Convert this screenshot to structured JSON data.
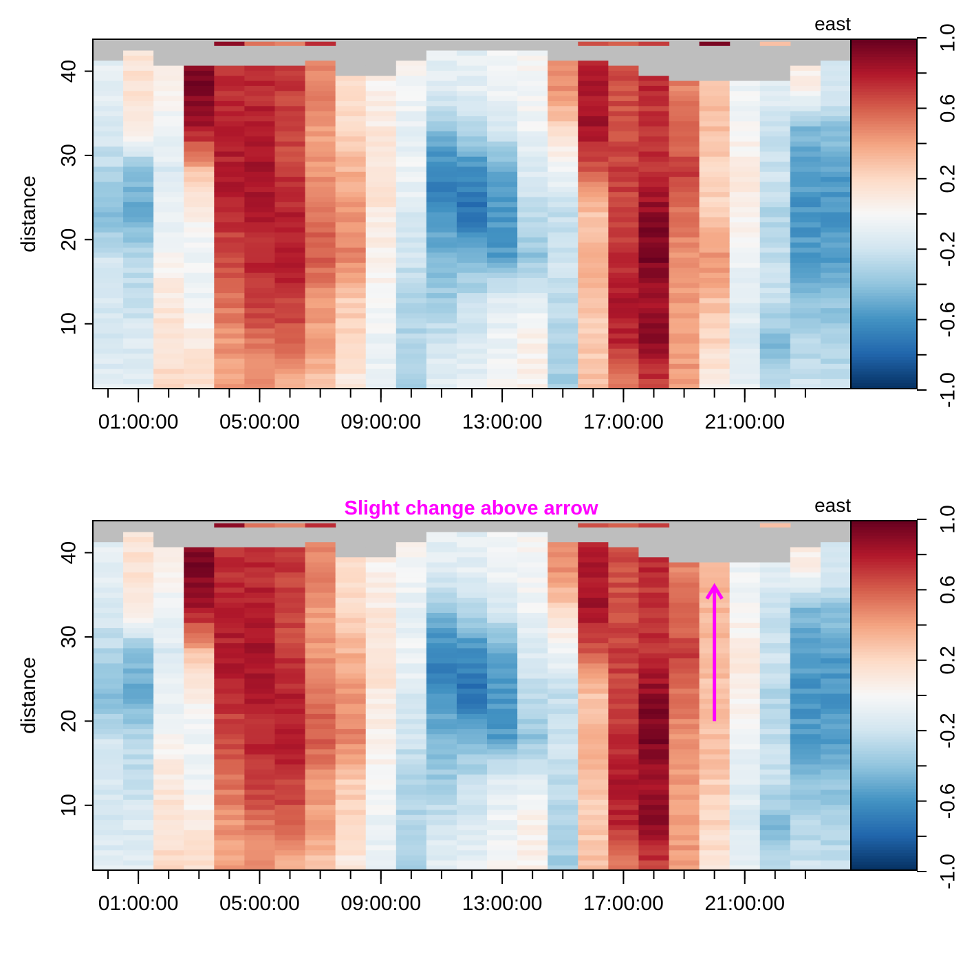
{
  "chart_data": [
    {
      "type": "heatmap",
      "title": "",
      "ylabel": "distance",
      "xlabel": "",
      "colorbar_title": "east",
      "x_tick_labels": [
        "01:00:00",
        "05:00:00",
        "09:00:00",
        "13:00:00",
        "17:00:00",
        "21:00:00"
      ],
      "x_tick_hours": [
        1,
        5,
        9,
        13,
        17,
        21
      ],
      "xlim_hours": [
        -0.5,
        24.5
      ],
      "x_minor_tick_hours": [
        0,
        1,
        2,
        3,
        4,
        5,
        6,
        7,
        8,
        9,
        10,
        11,
        12,
        13,
        14,
        15,
        16,
        17,
        18,
        19,
        20,
        21,
        22,
        23
      ],
      "y_ticks": [
        10,
        20,
        30,
        40
      ],
      "ylim": [
        2.3,
        43.8
      ],
      "zlim": [
        -1.0,
        1.0
      ],
      "colorbar_ticks": [
        "-1.0",
        "-0.6",
        "-0.2",
        "0.2",
        "0.6",
        "1.0"
      ],
      "colorbar_tick_values": [
        -1.0,
        -0.6,
        -0.2,
        0.2,
        0.6,
        1.0
      ],
      "colorbar_minor_values": [
        -1.0,
        -0.8,
        -0.6,
        -0.4,
        -0.2,
        0.0,
        0.2,
        0.4,
        0.6,
        0.8,
        1.0
      ],
      "palette": [
        "#053061",
        "#2166ac",
        "#4393c3",
        "#92c5de",
        "#d1e5f0",
        "#f7f7f7",
        "#fddbc7",
        "#f4a582",
        "#d6604d",
        "#b2182b",
        "#67001f"
      ],
      "missing_color": "#bebebe",
      "time_hours": [
        0,
        1,
        2,
        3,
        4,
        5,
        6,
        7,
        8,
        9,
        10,
        11,
        12,
        13,
        14,
        15,
        16,
        17,
        18,
        19,
        20,
        21,
        22,
        23,
        24
      ],
      "anchor_distances": [
        3,
        8,
        13,
        18,
        23,
        28,
        33,
        38
      ],
      "east_profiles": [
        [
          -0.12,
          -0.15,
          -0.18,
          -0.2,
          -0.45,
          -0.3,
          -0.15,
          -0.1
        ],
        [
          -0.1,
          -0.15,
          -0.22,
          -0.3,
          -0.5,
          -0.45,
          0.1,
          0.15
        ],
        [
          0.2,
          0.15,
          0.1,
          0.0,
          -0.08,
          -0.15,
          -0.05,
          0.05
        ],
        [
          0.15,
          0.1,
          -0.05,
          -0.05,
          0.05,
          0.3,
          0.8,
          0.95
        ],
        [
          0.4,
          0.45,
          0.55,
          0.65,
          0.75,
          0.8,
          0.75,
          0.75
        ],
        [
          0.45,
          0.55,
          0.7,
          0.75,
          0.8,
          0.85,
          0.78,
          0.75
        ],
        [
          0.35,
          0.6,
          0.7,
          0.8,
          0.78,
          0.7,
          0.65,
          0.7
        ],
        [
          0.3,
          0.4,
          0.45,
          0.6,
          0.55,
          0.45,
          0.4,
          0.5
        ],
        [
          0.1,
          0.2,
          0.25,
          0.5,
          0.45,
          0.35,
          0.2,
          0.15
        ],
        [
          -0.1,
          -0.05,
          0.0,
          0.05,
          0.1,
          0.15,
          0.1,
          0.05
        ],
        [
          -0.35,
          -0.3,
          -0.3,
          -0.2,
          -0.15,
          -0.05,
          -0.1,
          0.0
        ],
        [
          -0.1,
          -0.2,
          -0.35,
          -0.45,
          -0.6,
          -0.7,
          -0.4,
          -0.1
        ],
        [
          -0.1,
          -0.15,
          -0.25,
          -0.45,
          -0.75,
          -0.65,
          -0.3,
          -0.1
        ],
        [
          0.0,
          -0.05,
          -0.1,
          -0.55,
          -0.6,
          -0.5,
          -0.2,
          -0.05
        ],
        [
          0.05,
          0.05,
          -0.1,
          -0.4,
          -0.25,
          -0.15,
          -0.05,
          0.0
        ],
        [
          -0.35,
          -0.3,
          -0.25,
          -0.2,
          -0.25,
          -0.05,
          0.2,
          0.45
        ],
        [
          0.3,
          0.25,
          0.3,
          0.35,
          0.3,
          0.6,
          0.85,
          0.8
        ],
        [
          0.5,
          0.75,
          0.8,
          0.75,
          0.65,
          0.7,
          0.65,
          0.65
        ],
        [
          0.7,
          0.9,
          0.85,
          0.95,
          0.9,
          0.75,
          0.7,
          0.75
        ],
        [
          0.45,
          0.4,
          0.45,
          0.45,
          0.55,
          0.7,
          0.55,
          0.5
        ],
        [
          0.1,
          0.2,
          0.3,
          0.45,
          0.25,
          0.2,
          0.3,
          0.3
        ],
        [
          -0.1,
          -0.15,
          -0.1,
          -0.05,
          0.05,
          0.1,
          0.0,
          -0.05
        ],
        [
          -0.3,
          -0.45,
          -0.2,
          -0.25,
          -0.3,
          -0.2,
          -0.25,
          -0.1
        ],
        [
          -0.2,
          -0.3,
          -0.4,
          -0.55,
          -0.6,
          -0.55,
          -0.45,
          0.05
        ],
        [
          -0.2,
          -0.35,
          -0.4,
          -0.55,
          -0.6,
          -0.55,
          -0.4,
          -0.15
        ]
      ],
      "top_valid_distance": [
        41.5,
        42.5,
        41,
        41,
        40.5,
        40.5,
        40.5,
        41.5,
        39.5,
        39.5,
        41.5,
        42.5,
        42.5,
        42.5,
        42.5,
        41.5,
        41.5,
        41,
        39.8,
        39,
        39,
        39,
        39,
        41,
        41.5
      ],
      "masked_top_cells": [
        {
          "column": 4,
          "value": 0.9
        },
        {
          "column": 5,
          "value": 0.55
        },
        {
          "column": 6,
          "value": 0.5
        },
        {
          "column": 7,
          "value": 0.75
        },
        {
          "column": 16,
          "value": 0.65
        },
        {
          "column": 17,
          "value": 0.6
        },
        {
          "column": 18,
          "value": 0.7
        },
        {
          "column": 20,
          "value": 0.95
        },
        {
          "column": 22,
          "value": 0.3
        }
      ]
    },
    {
      "type": "heatmap",
      "title": "Slight change above arrow",
      "ylabel": "distance",
      "xlabel": "",
      "colorbar_title": "east",
      "x_tick_labels": [
        "01:00:00",
        "05:00:00",
        "09:00:00",
        "13:00:00",
        "17:00:00",
        "21:00:00"
      ],
      "x_tick_hours": [
        1,
        5,
        9,
        13,
        17,
        21
      ],
      "xlim_hours": [
        -0.5,
        24.5
      ],
      "x_minor_tick_hours": [
        0,
        1,
        2,
        3,
        4,
        5,
        6,
        7,
        8,
        9,
        10,
        11,
        12,
        13,
        14,
        15,
        16,
        17,
        18,
        19,
        20,
        21,
        22,
        23
      ],
      "y_ticks": [
        10,
        20,
        30,
        40
      ],
      "ylim": [
        2.3,
        43.8
      ],
      "zlim": [
        -1.0,
        1.0
      ],
      "colorbar_ticks": [
        "-1.0",
        "-0.6",
        "-0.2",
        "0.2",
        "0.6",
        "1.0"
      ],
      "colorbar_tick_values": [
        -1.0,
        -0.6,
        -0.2,
        0.2,
        0.6,
        1.0
      ],
      "colorbar_minor_values": [
        -1.0,
        -0.8,
        -0.6,
        -0.4,
        -0.2,
        0.0,
        0.2,
        0.4,
        0.6,
        0.8,
        1.0
      ],
      "palette": [
        "#053061",
        "#2166ac",
        "#4393c3",
        "#92c5de",
        "#d1e5f0",
        "#f7f7f7",
        "#fddbc7",
        "#f4a582",
        "#d6604d",
        "#b2182b",
        "#67001f"
      ],
      "missing_color": "#bebebe",
      "annotation_color": "#ff00ff",
      "arrow": {
        "hour": 20,
        "from_distance": 20,
        "to_distance": 36
      },
      "modified_column": 20,
      "modified_profile": [
        0.15,
        0.2,
        0.25,
        0.3,
        0.3,
        0.3,
        0.32,
        0.35
      ],
      "modified_top_valid_distance": 39,
      "modified_masked_top_cell": {
        "column": 20,
        "value": null
      }
    }
  ]
}
